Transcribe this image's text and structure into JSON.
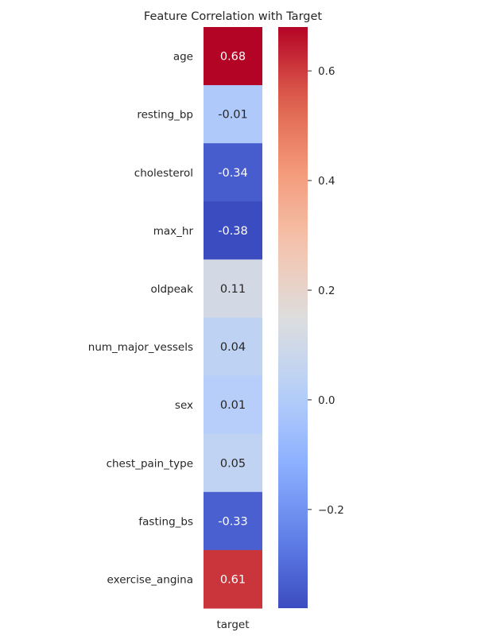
{
  "chart_data": {
    "type": "heatmap",
    "title": "Feature Correlation with Target",
    "columns": [
      "target"
    ],
    "rows": [
      "age",
      "resting_bp",
      "cholesterol",
      "max_hr",
      "oldpeak",
      "num_major_vessels",
      "sex",
      "chest_pain_type",
      "fasting_bs",
      "exercise_angina"
    ],
    "values": [
      0.68,
      -0.01,
      -0.34,
      -0.38,
      0.11,
      0.04,
      0.01,
      0.05,
      -0.33,
      0.61
    ],
    "value_labels": [
      "0.68",
      "-0.01",
      "-0.34",
      "-0.38",
      "0.11",
      "0.04",
      "0.01",
      "0.05",
      "-0.33",
      "0.61"
    ],
    "colormap": "coolwarm",
    "colorbar": {
      "vmin": -0.38,
      "vmax": 0.68,
      "ticks": [
        0.6,
        0.4,
        0.2,
        0.0,
        -0.2
      ],
      "tick_labels": [
        "0.6",
        "0.4",
        "0.2",
        "0.0",
        "−0.2"
      ]
    }
  }
}
